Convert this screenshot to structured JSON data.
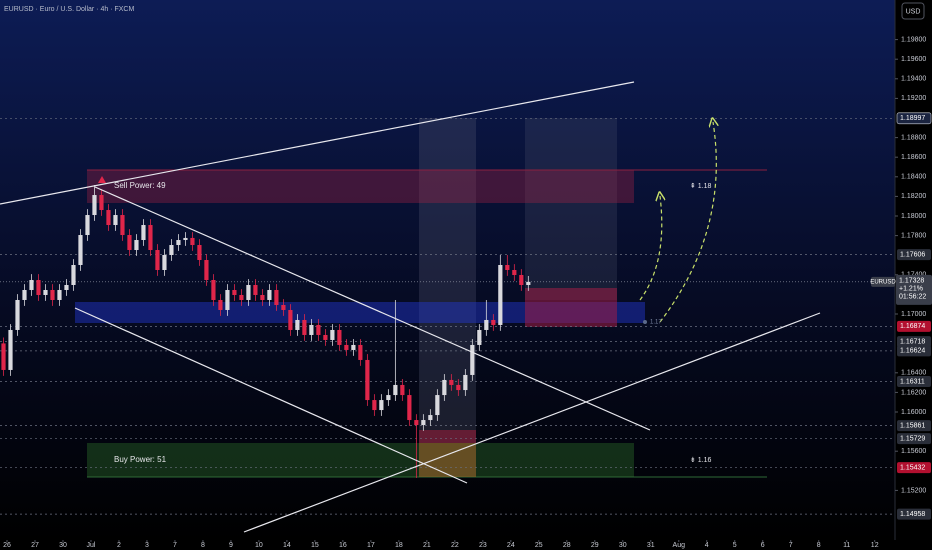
{
  "chart_data": {
    "type": "candlestick",
    "title": "EURUSD · Euro / U.S. Dollar · 4h · FXCM",
    "currency": "USD",
    "up_color": "#d9d9de",
    "down_color": "#e0264a",
    "xlim": [
      -0.5,
      127.4
    ],
    "xticks": [
      {
        "value": 0.5,
        "label": "26"
      },
      {
        "value": 4.5,
        "label": "27"
      },
      {
        "value": 8.5,
        "label": "30"
      },
      {
        "value": 12.5,
        "label": "Jul"
      },
      {
        "value": 16.5,
        "label": "2"
      },
      {
        "value": 20.5,
        "label": "3"
      },
      {
        "value": 24.5,
        "label": "7"
      },
      {
        "value": 28.5,
        "label": "8"
      },
      {
        "value": 32.5,
        "label": "9"
      },
      {
        "value": 36.5,
        "label": "10"
      },
      {
        "value": 40.5,
        "label": "14"
      },
      {
        "value": 44.5,
        "label": "15"
      },
      {
        "value": 48.5,
        "label": "16"
      },
      {
        "value": 52.5,
        "label": "17"
      },
      {
        "value": 56.5,
        "label": "18"
      },
      {
        "value": 60.5,
        "label": "21"
      },
      {
        "value": 64.5,
        "label": "22"
      },
      {
        "value": 68.5,
        "label": "23"
      },
      {
        "value": 72.5,
        "label": "24"
      },
      {
        "value": 76.5,
        "label": "25"
      },
      {
        "value": 80.5,
        "label": "28"
      },
      {
        "value": 84.5,
        "label": "29"
      },
      {
        "value": 88.5,
        "label": "30"
      },
      {
        "value": 92.5,
        "label": "31"
      },
      {
        "value": 96.5,
        "label": "Aug"
      },
      {
        "value": 100.5,
        "label": "4"
      },
      {
        "value": 104.5,
        "label": "5"
      },
      {
        "value": 108.5,
        "label": "6"
      },
      {
        "value": 112.5,
        "label": "7"
      },
      {
        "value": 116.5,
        "label": "8"
      },
      {
        "value": 120.5,
        "label": "11"
      },
      {
        "value": 124.5,
        "label": "12"
      }
    ],
    "ylim": [
      1.14694,
      1.20204
    ],
    "yticks": [
      {
        "value": 1.198,
        "label": "1.19800"
      },
      {
        "value": 1.196,
        "label": "1.19600"
      },
      {
        "value": 1.194,
        "label": "1.19400"
      },
      {
        "value": 1.192,
        "label": "1.19200"
      },
      {
        "value": 1.188,
        "label": "1.18800"
      },
      {
        "value": 1.186,
        "label": "1.18600"
      },
      {
        "value": 1.184,
        "label": "1.18400"
      },
      {
        "value": 1.182,
        "label": "1.18200"
      },
      {
        "value": 1.18,
        "label": "1.18000"
      },
      {
        "value": 1.178,
        "label": "1.17800"
      },
      {
        "value": 1.174,
        "label": "1.17400"
      },
      {
        "value": 1.17,
        "label": "1.17000"
      },
      {
        "value": 1.164,
        "label": "1.16400"
      },
      {
        "value": 1.162,
        "label": "1.16200"
      },
      {
        "value": 1.16,
        "label": "1.16000"
      },
      {
        "value": 1.156,
        "label": "1.15600"
      },
      {
        "value": 1.152,
        "label": "1.15200"
      }
    ],
    "price_labels": [
      {
        "value": 1.18997,
        "color": "#1b2440"
      },
      {
        "value": 1.17606,
        "color": "#2a2e39"
      },
      {
        "value": 1.16874,
        "color": "#b2102f"
      },
      {
        "value": 1.16718,
        "color": "#2a2e39"
      },
      {
        "value": 1.16624,
        "color": "#2a2e39"
      },
      {
        "value": 1.16311,
        "color": "#2a2e39"
      },
      {
        "value": 1.15861,
        "color": "#2a2e39"
      },
      {
        "value": 1.15729,
        "color": "#2a2e39"
      },
      {
        "value": 1.15432,
        "color": "#b2102f"
      },
      {
        "value": 1.14958,
        "color": "#2a2e39"
      }
    ],
    "last_price": {
      "symbol": "EURUSD",
      "value": 1.17328,
      "change": "+1.21%",
      "countdown": "01:56:22"
    },
    "annotations": {
      "sell_power": "Sell Power: 49",
      "buy_power": "Buy Power: 51",
      "target_up": "⇞ 1.18",
      "target_down": "⇟ 1.16",
      "mid_level": "1.17"
    },
    "candles": {
      "open": [
        1.167,
        1.16429,
        1.16837,
        1.17143,
        1.17245,
        1.17347,
        1.17194,
        1.17245,
        1.17143,
        1.17245,
        1.17296,
        1.175,
        1.17806,
        1.1801,
        1.18214,
        1.18061,
        1.17908,
        1.1801,
        1.17806,
        1.17653,
        1.17755,
        1.17908,
        1.17653,
        1.17449,
        1.17602,
        1.17704,
        1.17755,
        1.17776,
        1.17704,
        1.17551,
        1.17347,
        1.17143,
        1.17041,
        1.17245,
        1.17194,
        1.17143,
        1.17296,
        1.17194,
        1.17143,
        1.17245,
        1.17092,
        1.17041,
        1.16837,
        1.16939,
        1.16786,
        1.16888,
        1.16786,
        1.16735,
        1.16837,
        1.16684,
        1.16633,
        1.16684,
        1.16531,
        1.16122,
        1.1602,
        1.16122,
        1.16173,
        1.16276,
        1.16173,
        1.15918,
        1.15867,
        1.15918,
        1.15969,
        1.16173,
        1.16327,
        1.16276,
        1.16224,
        1.16378,
        1.16684,
        1.16837,
        1.16939,
        1.16888,
        1.175,
        1.17449,
        1.17398,
        1.17296
      ],
      "high": [
        1.1676,
        1.16897,
        1.17203,
        1.17305,
        1.17407,
        1.17407,
        1.17305,
        1.17305,
        1.17305,
        1.17356,
        1.1756,
        1.17866,
        1.1807,
        1.18316,
        1.18274,
        1.18121,
        1.1807,
        1.1807,
        1.17866,
        1.17815,
        1.17968,
        1.17968,
        1.17713,
        1.17662,
        1.17764,
        1.17815,
        1.17836,
        1.17836,
        1.17764,
        1.17611,
        1.17407,
        1.17203,
        1.17305,
        1.17305,
        1.17254,
        1.17356,
        1.17356,
        1.17254,
        1.17305,
        1.17305,
        1.17152,
        1.17101,
        1.16999,
        1.16999,
        1.16948,
        1.16948,
        1.16846,
        1.16897,
        1.16897,
        1.16744,
        1.16744,
        1.16744,
        1.16591,
        1.16182,
        1.16182,
        1.16233,
        1.17143,
        1.16336,
        1.16233,
        1.15978,
        1.15978,
        1.16029,
        1.16233,
        1.16387,
        1.16387,
        1.16336,
        1.16438,
        1.16744,
        1.16897,
        1.17143,
        1.16999,
        1.17602,
        1.17602,
        1.17509,
        1.17458,
        1.17388
      ],
      "low": [
        1.16369,
        1.16369,
        1.16777,
        1.17083,
        1.17185,
        1.17134,
        1.17134,
        1.17083,
        1.17083,
        1.17185,
        1.17236,
        1.1744,
        1.17746,
        1.1795,
        1.18001,
        1.17848,
        1.17848,
        1.17746,
        1.17593,
        1.17593,
        1.17695,
        1.17593,
        1.17389,
        1.17389,
        1.17542,
        1.17644,
        1.17695,
        1.17644,
        1.17491,
        1.17287,
        1.17083,
        1.16981,
        1.16981,
        1.17134,
        1.17083,
        1.17083,
        1.17134,
        1.17083,
        1.17083,
        1.17032,
        1.16981,
        1.16777,
        1.16777,
        1.16726,
        1.16726,
        1.16726,
        1.16675,
        1.16675,
        1.16624,
        1.16573,
        1.16573,
        1.16471,
        1.16062,
        1.1596,
        1.1596,
        1.16062,
        1.16113,
        1.16113,
        1.15858,
        1.15327,
        1.15807,
        1.15858,
        1.15909,
        1.16113,
        1.16216,
        1.16164,
        1.16164,
        1.16318,
        1.16624,
        1.16777,
        1.16828,
        1.16828,
        1.17389,
        1.17338,
        1.17236,
        1.17236
      ],
      "close": [
        1.16429,
        1.16837,
        1.17143,
        1.17245,
        1.17347,
        1.17194,
        1.17245,
        1.17143,
        1.17245,
        1.17296,
        1.175,
        1.17806,
        1.1801,
        1.18214,
        1.18061,
        1.17908,
        1.1801,
        1.17806,
        1.17653,
        1.17755,
        1.17908,
        1.17653,
        1.17449,
        1.17602,
        1.17704,
        1.17755,
        1.17776,
        1.17704,
        1.17551,
        1.17347,
        1.17143,
        1.17041,
        1.17245,
        1.17194,
        1.17143,
        1.17296,
        1.17194,
        1.17143,
        1.17245,
        1.17092,
        1.17041,
        1.16837,
        1.16939,
        1.16786,
        1.16888,
        1.16786,
        1.16735,
        1.16837,
        1.16684,
        1.16633,
        1.16684,
        1.16531,
        1.16122,
        1.1602,
        1.16122,
        1.16173,
        1.16276,
        1.16173,
        1.15918,
        1.15867,
        1.15918,
        1.15969,
        1.16173,
        1.16327,
        1.16276,
        1.16224,
        1.16378,
        1.16684,
        1.16837,
        1.16939,
        1.16888,
        1.175,
        1.17449,
        1.17398,
        1.17296,
        1.17328
      ]
    }
  }
}
